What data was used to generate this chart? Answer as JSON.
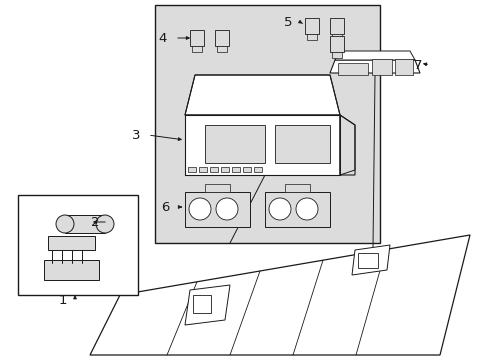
{
  "bg_color": "#ffffff",
  "line_color": "#1a1a1a",
  "shade_color": "#dcdcdc",
  "lw": 0.8
}
